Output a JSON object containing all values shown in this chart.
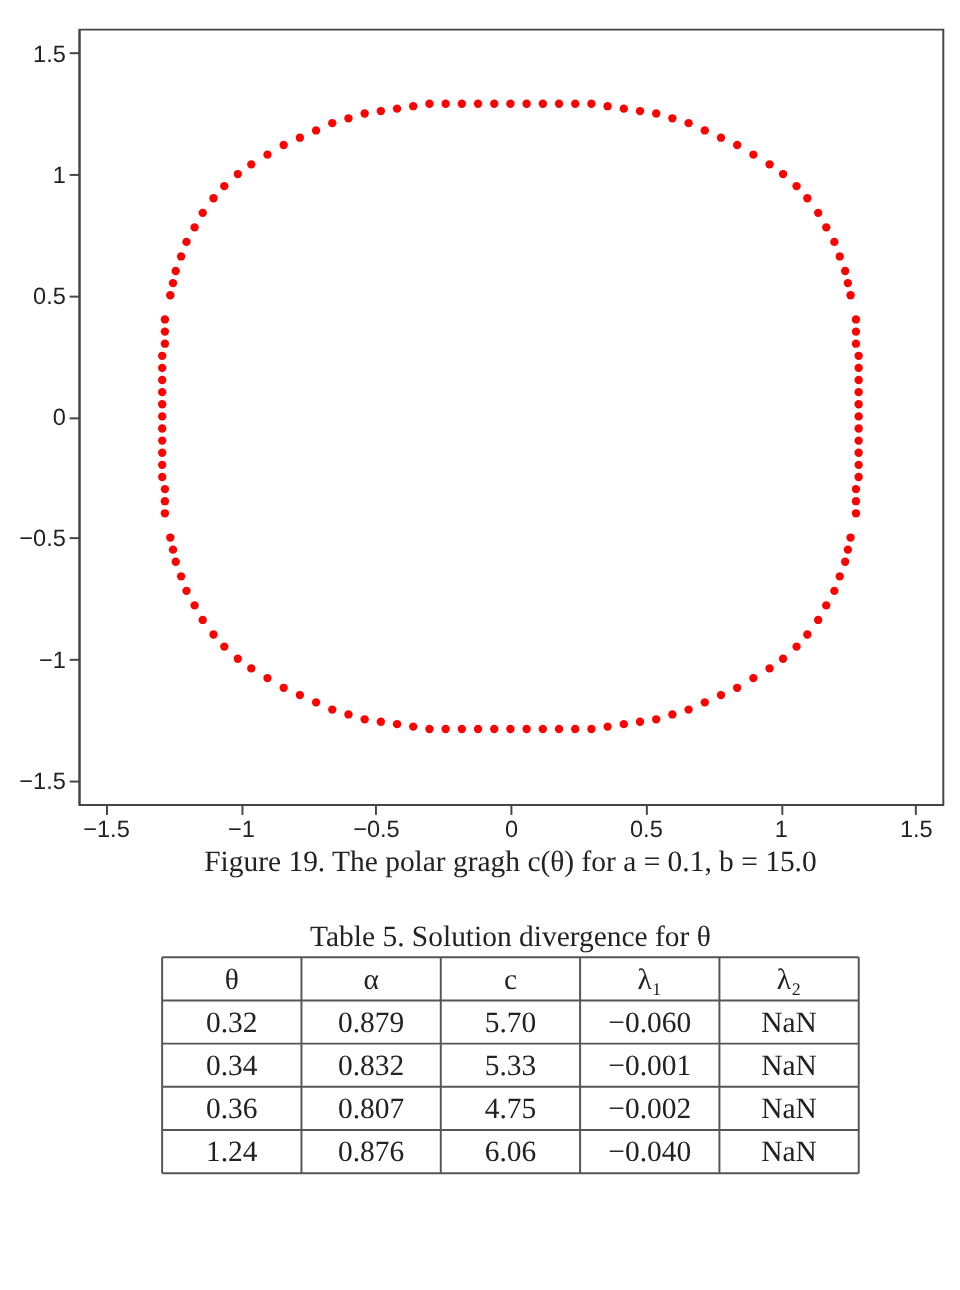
{
  "chart_data": [
    {
      "type": "scatter",
      "marker": "circle",
      "grid": false,
      "xlim": [
        -1.6,
        1.6
      ],
      "ylim": [
        -1.6,
        1.6
      ],
      "xticks": [
        -1.5,
        -1,
        -0.5,
        0,
        0.5,
        1,
        1.5
      ],
      "yticks": [
        -1.5,
        -1,
        -0.5,
        0,
        0.5,
        1,
        1.5
      ],
      "annotations": [
        "Figure 19.   The polar gragh c(θ) for a = 0.1, b = 15.0"
      ],
      "series": [
        {
          "color": "#ff0000",
          "x": [
            1.29,
            1.29,
            1.29,
            1.29,
            1.29,
            1.29,
            1.28,
            1.28,
            1.28,
            1.26,
            1.25,
            1.24,
            1.22,
            1.2,
            1.17,
            1.14,
            1.1,
            1.06,
            1.01,
            0.96,
            0.9,
            0.84,
            0.78,
            0.72,
            0.66,
            0.6,
            0.54,
            0.48,
            0.42,
            0.36,
            0.3,
            0.24,
            0.18,
            0.12,
            0.06,
            0,
            -0.06,
            -0.12,
            -0.18,
            -0.24,
            -0.3,
            -0.36,
            -0.42,
            -0.48,
            -0.54,
            -0.6,
            -0.66,
            -0.72,
            -0.78,
            -0.84,
            -0.9,
            -0.96,
            -1.01,
            -1.06,
            -1.1,
            -1.14,
            -1.17,
            -1.2,
            -1.22,
            -1.24,
            -1.25,
            -1.26,
            -1.28,
            -1.28,
            -1.28,
            -1.29,
            -1.29,
            -1.29,
            -1.29,
            -1.29,
            -1.29,
            -1.29,
            -1.29,
            -1.29,
            -1.29,
            -1.29,
            -1.28,
            -1.28,
            -1.28,
            -1.26,
            -1.25,
            -1.24,
            -1.22,
            -1.2,
            -1.17,
            -1.14,
            -1.1,
            -1.06,
            -1.01,
            -0.96,
            -0.9,
            -0.84,
            -0.78,
            -0.72,
            -0.66,
            -0.6,
            -0.54,
            -0.48,
            -0.42,
            -0.36,
            -0.3,
            -0.24,
            -0.18,
            -0.12,
            -0.06,
            0,
            0.06,
            0.12,
            0.18,
            0.24,
            0.3,
            0.36,
            0.42,
            0.48,
            0.54,
            0.6,
            0.66,
            0.72,
            0.78,
            0.84,
            0.9,
            0.96,
            1.01,
            1.06,
            1.1,
            1.14,
            1.17,
            1.2,
            1.22,
            1.24,
            1.25,
            1.26,
            1.28,
            1.28,
            1.28,
            1.29,
            1.29,
            1.29,
            1.29,
            1.29
          ],
          "values": [
            0,
            0.05,
            0.1,
            0.15,
            0.2,
            0.25,
            0.3,
            0.35,
            0.4,
            0.5,
            0.55,
            0.6,
            0.66,
            0.72,
            0.78,
            0.84,
            0.9,
            0.95,
            1.0,
            1.04,
            1.08,
            1.12,
            1.15,
            1.18,
            1.21,
            1.23,
            1.25,
            1.26,
            1.27,
            1.28,
            1.29,
            1.29,
            1.29,
            1.29,
            1.29,
            1.29,
            1.29,
            1.29,
            1.29,
            1.29,
            1.29,
            1.28,
            1.27,
            1.26,
            1.25,
            1.23,
            1.21,
            1.18,
            1.15,
            1.12,
            1.08,
            1.04,
            1.0,
            0.95,
            0.9,
            0.84,
            0.78,
            0.72,
            0.66,
            0.6,
            0.55,
            0.5,
            0.4,
            0.35,
            0.3,
            0.25,
            0.2,
            0.15,
            0.1,
            0.05,
            0,
            -0.05,
            -0.1,
            -0.15,
            -0.2,
            -0.25,
            -0.3,
            -0.35,
            -0.4,
            -0.5,
            -0.55,
            -0.6,
            -0.66,
            -0.72,
            -0.78,
            -0.84,
            -0.9,
            -0.95,
            -1.0,
            -1.04,
            -1.08,
            -1.12,
            -1.15,
            -1.18,
            -1.21,
            -1.23,
            -1.25,
            -1.26,
            -1.27,
            -1.28,
            -1.29,
            -1.29,
            -1.29,
            -1.29,
            -1.29,
            -1.29,
            -1.29,
            -1.29,
            -1.29,
            -1.29,
            -1.29,
            -1.28,
            -1.27,
            -1.26,
            -1.25,
            -1.23,
            -1.21,
            -1.18,
            -1.15,
            -1.12,
            -1.08,
            -1.04,
            -1.0,
            -0.95,
            -0.9,
            -0.84,
            -0.78,
            -0.72,
            -0.66,
            -0.6,
            -0.55,
            -0.5,
            -0.4,
            -0.35,
            -0.3,
            -0.25,
            -0.2,
            -0.15,
            -0.1,
            -0.05
          ]
        }
      ]
    },
    {
      "type": "other",
      "title": "Table 5.   Solution divergence for θ",
      "categories": [
        "θ",
        "α",
        "c",
        "λ₁",
        "λ₂"
      ],
      "cell_labels": [
        [
          "0.32",
          "0.879",
          "5.70",
          "−0.060",
          "NaN"
        ],
        [
          "0.34",
          "0.832",
          "5.33",
          "−0.001",
          "NaN"
        ],
        [
          "0.36",
          "0.807",
          "4.75",
          "−0.002",
          "NaN"
        ],
        [
          "1.24",
          "0.876",
          "6.06",
          "−0.040",
          "NaN"
        ]
      ]
    }
  ]
}
